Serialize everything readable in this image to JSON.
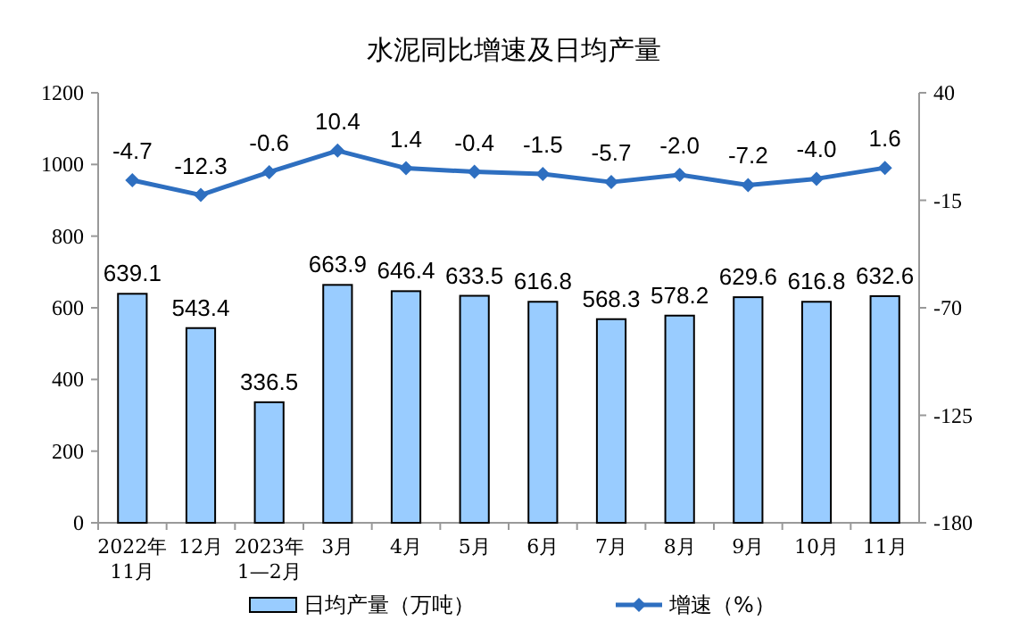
{
  "chart_data": {
    "type": "bar",
    "title": "水泥同比增速及日均产量",
    "categories": [
      "2022年\n11月",
      "12月",
      "2023年\n1—2月",
      "3月",
      "4月",
      "5月",
      "6月",
      "7月",
      "8月",
      "9月",
      "10月",
      "11月"
    ],
    "series": [
      {
        "name": "日均产量（万吨）",
        "color": "#99ccff",
        "values": [
          639.1,
          543.4,
          336.5,
          663.9,
          646.4,
          633.5,
          616.8,
          568.3,
          578.2,
          629.6,
          616.8,
          632.6
        ]
      },
      {
        "name": "增速（%）",
        "type": "line",
        "axis": "y2",
        "color": "#2e6fc0",
        "values": [
          -4.7,
          -12.3,
          -0.6,
          10.4,
          1.4,
          -0.4,
          -1.5,
          -5.7,
          -2.0,
          -7.2,
          -4.0,
          1.6
        ],
        "value_labels": [
          "-4.7",
          "-12.3",
          "-0.6",
          "10.4",
          "1.4",
          "-0.4",
          "-1.5",
          "-5.7",
          "-2.0",
          "-7.2",
          "-4.0",
          "1.6"
        ]
      }
    ],
    "ylim": [
      0,
      1200
    ],
    "yticks": [
      0,
      200,
      400,
      600,
      800,
      1000,
      1200
    ],
    "y2lim": [
      -180,
      40
    ],
    "y2ticks": [
      -180,
      -125,
      -70,
      -15,
      40
    ],
    "data_labels": true,
    "legend": "bottom",
    "marker": "diamond",
    "grid": false
  }
}
